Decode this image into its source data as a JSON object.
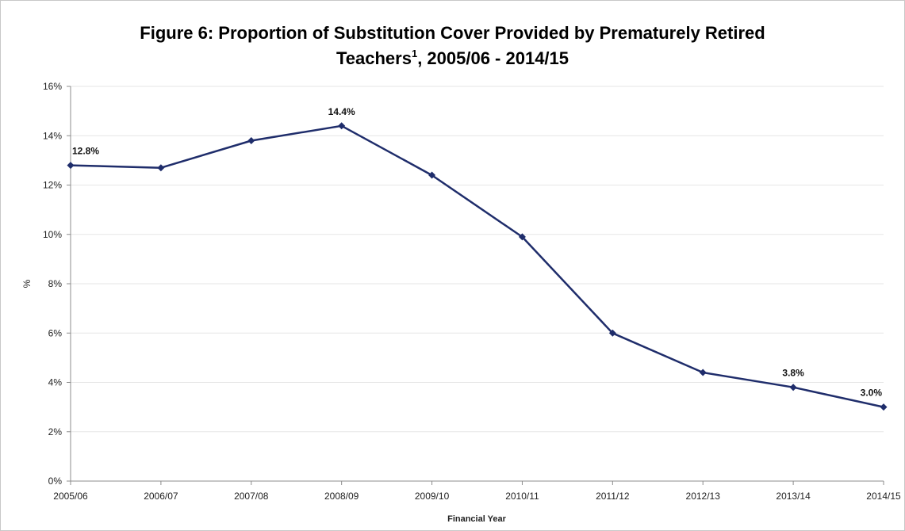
{
  "chart_data": {
    "type": "line",
    "title_main": "Figure 6: Proportion of Substitution Cover Provided by Prematurely Retired",
    "title_line2_prefix": "Teachers",
    "title_superscript": "1",
    "title_line2_suffix": ", 2005/06 - 2014/15",
    "xlabel": "Financial Year",
    "ylabel": "%",
    "categories": [
      "2005/06",
      "2006/07",
      "2007/08",
      "2008/09",
      "2009/10",
      "2010/11",
      "2011/12",
      "2012/13",
      "2013/14",
      "2014/15"
    ],
    "series": [
      {
        "values": [
          12.8,
          12.7,
          13.8,
          14.4,
          12.4,
          9.9,
          6.0,
          4.4,
          3.8,
          3.0
        ]
      }
    ],
    "data_labels": [
      {
        "index": 0,
        "text": "12.8%"
      },
      {
        "index": 3,
        "text": "14.4%"
      },
      {
        "index": 8,
        "text": "3.8%"
      },
      {
        "index": 9,
        "text": "3.0%"
      }
    ],
    "ylim": [
      0,
      16
    ],
    "yticks": [
      0,
      2,
      4,
      6,
      8,
      10,
      12,
      14,
      16
    ],
    "ytick_labels": [
      "0%",
      "2%",
      "4%",
      "6%",
      "8%",
      "10%",
      "12%",
      "14%",
      "16%"
    ],
    "grid": true,
    "legend": "none",
    "line_color": "#1f2d6b",
    "grid_color": "#e6e6e6"
  }
}
